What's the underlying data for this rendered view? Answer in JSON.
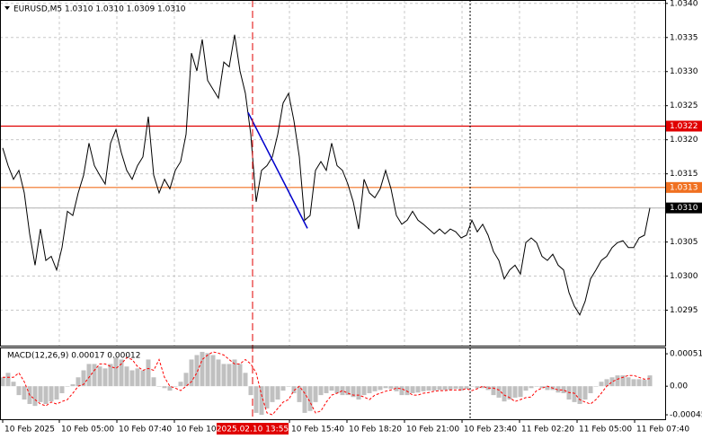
{
  "chart_data": [
    {
      "type": "line",
      "title": "EURUSD,M5  1.0310 1.0310 1.0309 1.0310",
      "color": "#000000",
      "values": [
        1.03188,
        1.03162,
        1.03142,
        1.03155,
        1.03122,
        1.03062,
        1.03016,
        1.03069,
        1.03023,
        1.03029,
        1.03009,
        1.03042,
        1.03095,
        1.03089,
        1.03122,
        1.03148,
        1.03195,
        1.03162,
        1.03148,
        1.03135,
        1.03195,
        1.03215,
        1.03181,
        1.03155,
        1.03142,
        1.03162,
        1.03175,
        1.03234,
        1.03148,
        1.03122,
        1.03142,
        1.03128,
        1.03155,
        1.03168,
        1.03208,
        1.03327,
        1.03301,
        1.03347,
        1.03287,
        1.03274,
        1.03261,
        1.03314,
        1.03307,
        1.03354,
        1.03301,
        1.03268,
        1.03208,
        1.03109,
        1.03155,
        1.03162,
        1.03175,
        1.03208,
        1.03254,
        1.03268,
        1.03228,
        1.03175,
        1.03082,
        1.03089,
        1.03155,
        1.03168,
        1.03155,
        1.03195,
        1.03162,
        1.03155,
        1.03135,
        1.03109,
        1.03069,
        1.03142,
        1.03122,
        1.03115,
        1.03128,
        1.03155,
        1.03128,
        1.03089,
        1.03076,
        1.03082,
        1.03095,
        1.03082,
        1.03076,
        1.03069,
        1.03062,
        1.03069,
        1.03062,
        1.03069,
        1.03065,
        1.03056,
        1.0306,
        1.03082,
        1.03065,
        1.03076,
        1.0306,
        1.03036,
        1.03023,
        1.02996,
        1.03009,
        1.03016,
        1.03003,
        1.03049,
        1.03056,
        1.03049,
        1.03029,
        1.03023,
        1.03032,
        1.03016,
        1.03009,
        1.02976,
        1.02956,
        1.02943,
        1.02963,
        1.02996,
        1.03009,
        1.03023,
        1.03029,
        1.03042,
        1.03049,
        1.03052,
        1.03042,
        1.03042,
        1.03056,
        1.0306,
        1.031
      ],
      "xlim": [
        -0.5,
        122.83
      ],
      "xticks": [
        {
          "value": 0,
          "label": "10 Feb 2025"
        },
        {
          "value": 10.5,
          "label": "10 Feb 05:00"
        },
        {
          "value": 21.17,
          "label": "10 Feb 07:40"
        },
        {
          "value": 31.83,
          "label": "10 Feb 10:20"
        },
        {
          "value": 53.17,
          "label": "10 Feb 15:40"
        },
        {
          "value": 63.83,
          "label": "10 Feb 18:20"
        },
        {
          "value": 74.5,
          "label": "10 Feb 21:00"
        },
        {
          "value": 85.17,
          "label": "10 Feb 23:40"
        },
        {
          "value": 95.83,
          "label": "11 Feb 02:20"
        },
        {
          "value": 106.5,
          "label": "11 Feb 05:00"
        },
        {
          "value": 117.17,
          "label": "11 Feb 07:40"
        }
      ],
      "ylim": [
        1.02898,
        1.03405
      ],
      "yticks": [
        {
          "value": 1.034,
          "label": "1.0340"
        },
        {
          "value": 1.0335,
          "label": "1.0335"
        },
        {
          "value": 1.033,
          "label": "1.0330"
        },
        {
          "value": 1.0325,
          "label": "1.0325"
        },
        {
          "value": 1.032,
          "label": "1.0320"
        },
        {
          "value": 1.0315,
          "label": "1.0315"
        },
        {
          "value": 1.031,
          "label": "1.0310"
        },
        {
          "value": 1.0305,
          "label": "1.0305"
        },
        {
          "value": 1.03,
          "label": "1.0300"
        },
        {
          "value": 1.0295,
          "label": "1.0295"
        }
      ],
      "grid": true,
      "levels": [
        {
          "value": 1.0322,
          "label": "1.0322",
          "color": "#e00000",
          "line": "#e00000"
        },
        {
          "value": 1.0313,
          "label": "1.0313",
          "color": "#f07020",
          "line": "#f07020"
        },
        {
          "value": 1.031,
          "label": "1.0310",
          "color": "#000000",
          "line": "#c0c0c0"
        }
      ],
      "vlines": [
        {
          "value": 46.33,
          "label": "2025.02.10 13:55",
          "color": "#e00000",
          "style": "dashed"
        },
        {
          "value": 86.67,
          "color": "#000000",
          "style": "dotted"
        }
      ],
      "trendline": {
        "x": [
          45.5,
          56.5
        ],
        "y": [
          1.0324,
          1.0307
        ],
        "color": "#0000cc"
      }
    },
    {
      "type": "macd",
      "title": "MACD(12,26,9) 0.00017 0.00012",
      "series": [
        {
          "kind": "bar",
          "color": "#c0c0c0",
          "values": [
            0.00014,
            0.00021,
            7e-05,
            -0.00014,
            -0.00021,
            -0.00028,
            -0.00031,
            -0.00025,
            -0.00028,
            -0.00024,
            -0.00021,
            -0.00011,
            0,
            3e-05,
            0.00014,
            0.00025,
            0.00035,
            0.00035,
            0.00031,
            0.00028,
            0.00035,
            0.00045,
            0.00042,
            0.00031,
            0.00025,
            0.00028,
            0.00025,
            0.00042,
            0.00014,
            0,
            -3e-05,
            -7e-05,
            0,
            7e-05,
            0.00021,
            0.00042,
            0.00049,
            0.00054,
            0.00052,
            0.00049,
            0.00042,
            0.00035,
            0.00035,
            0.00042,
            0.00035,
            0.00021,
            -0.00014,
            -0.00042,
            -0.00045,
            -0.00035,
            -0.00025,
            -0.00021,
            -7e-05,
            0,
            -0.00011,
            -0.00025,
            -0.00042,
            -0.00039,
            -0.00025,
            -0.00014,
            -0.00011,
            -7e-05,
            -0.00011,
            -0.00014,
            -0.00014,
            -0.00017,
            -0.00021,
            -0.00014,
            -0.00011,
            -8e-05,
            -6e-05,
            -3e-05,
            -4e-05,
            -8e-05,
            -0.00014,
            -0.00014,
            -0.00011,
            -0.0001,
            -8e-05,
            -7e-05,
            -7e-05,
            -6e-05,
            -6e-05,
            -6e-05,
            -4e-05,
            -7e-05,
            -4e-05,
            0,
            -3e-05,
            -3e-05,
            -6e-05,
            -0.00014,
            -0.00018,
            -0.00024,
            -0.00021,
            -0.00018,
            -0.00017,
            -7e-05,
            -3e-05,
            0,
            -3e-05,
            -6e-05,
            -6e-05,
            -0.0001,
            -0.00011,
            -0.00021,
            -0.00025,
            -0.00028,
            -0.00021,
            -0.00011,
            0,
            7e-05,
            0.00011,
            0.00014,
            0.00017,
            0.00017,
            0.00014,
            0.00011,
            0.00011,
            0.0001,
            0.00017
          ]
        },
        {
          "kind": "line",
          "color": "#ff0000",
          "values": [
            0.00014,
            0.00014,
            0.00014,
            0.00021,
            7e-05,
            -0.00014,
            -0.00021,
            -0.00028,
            -0.00031,
            -0.00025,
            -0.00028,
            -0.00024,
            -0.00021,
            -0.00011,
            0,
            3e-05,
            0.00014,
            0.00025,
            0.00035,
            0.00035,
            0.00031,
            0.00028,
            0.00035,
            0.00045,
            0.00042,
            0.00031,
            0.00025,
            0.00028,
            0.00025,
            0.00042,
            0.00014,
            0,
            -3e-05,
            -7e-05,
            0,
            7e-05,
            0.00021,
            0.00042,
            0.00049,
            0.00054,
            0.00052,
            0.00049,
            0.00042,
            0.00035,
            0.00035,
            0.00042,
            0.00035,
            0.00021,
            -0.00014,
            -0.00042,
            -0.00045,
            -0.00035,
            -0.00025,
            -0.00021,
            -7e-05,
            0,
            -0.00011,
            -0.00025,
            -0.00042,
            -0.00039,
            -0.00025,
            -0.00014,
            -0.00011,
            -7e-05,
            -0.00011,
            -0.00014,
            -0.00014,
            -0.00017,
            -0.00021,
            -0.00014,
            -0.00011,
            -8e-05,
            -6e-05,
            -3e-05,
            -4e-05,
            -8e-05,
            -0.00014,
            -0.00014,
            -0.00011,
            -0.0001,
            -8e-05,
            -7e-05,
            -7e-05,
            -6e-05,
            -6e-05,
            -6e-05,
            -4e-05,
            -7e-05,
            -4e-05,
            0,
            -3e-05,
            -3e-05,
            -6e-05,
            -0.00014,
            -0.00018,
            -0.00024,
            -0.00021,
            -0.00018,
            -0.00017,
            -7e-05,
            -3e-05,
            0,
            -3e-05,
            -6e-05,
            -6e-05,
            -0.0001,
            -0.00011,
            -0.00021,
            -0.00025,
            -0.00028,
            -0.00021,
            -0.00011,
            0,
            7e-05,
            0.00011,
            0.00014,
            0.00017,
            0.00017,
            0.00014,
            0.00011,
            0.00012
          ]
        }
      ],
      "ylim": [
        -0.00052,
        0.00061
      ],
      "yticks": [
        0.00051,
        {
          "value": 0,
          "label": "0.00"
        },
        -0.00045
      ]
    }
  ]
}
